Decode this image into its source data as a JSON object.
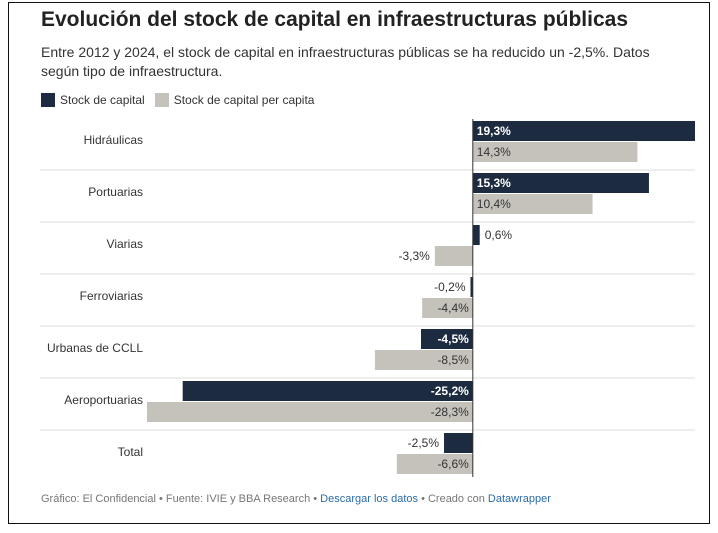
{
  "chart_data": {
    "type": "bar",
    "orientation": "horizontal",
    "title": "Evolución del stock de capital en infraestructuras públicas",
    "subtitle": "Entre 2012 y 2024, el stock de capital en infraestructuras públicas se ha reducido un -2,5%. Datos según tipo de infraestructura.",
    "categories": [
      "Hidráulicas",
      "Portuarias",
      "Viarias",
      "Ferroviarias",
      "Urbanas de CCLL",
      "Aeroportuarias",
      "Total"
    ],
    "series": [
      {
        "name": "Stock de capital",
        "color": "#1d2b41",
        "values": [
          19.3,
          15.3,
          0.6,
          -0.2,
          -4.5,
          -25.2,
          -2.5
        ],
        "value_labels": [
          "19,3%",
          "15,3%",
          "0,6%",
          "-0,2%",
          "-4,5%",
          "-25,2%",
          "-2,5%"
        ]
      },
      {
        "name": "Stock de capital per capita",
        "color": "#c5c2bb",
        "values": [
          14.3,
          10.4,
          -3.3,
          -4.4,
          -8.5,
          -28.3,
          -6.6
        ],
        "value_labels": [
          "14,3%",
          "10,4%",
          "-3,3%",
          "-4,4%",
          "-8,5%",
          "-28,3%",
          "-6,6%"
        ]
      }
    ],
    "footer": {
      "source": "Gráfico: El Confidencial • Fuente: IVIE y BBA Research •",
      "download": "Descargar los datos",
      "credit": "• Creado con",
      "tool": "Datawrapper"
    }
  }
}
